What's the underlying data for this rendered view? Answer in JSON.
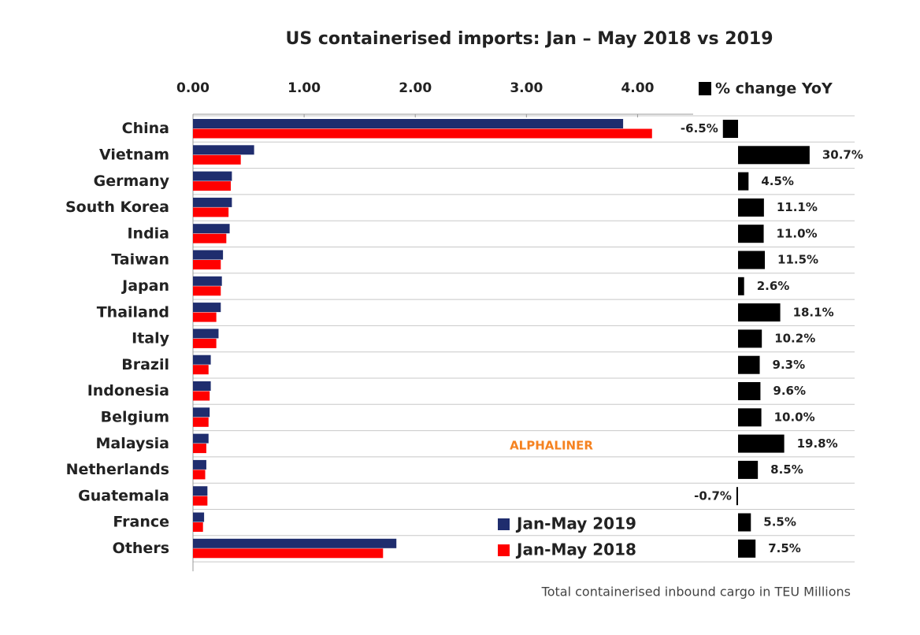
{
  "chart_data": {
    "type": "bar",
    "orientation": "horizontal",
    "title": "US containerised imports: Jan – May 2018 vs 2019",
    "footnote": "Total containerised inbound cargo in TEU Millions",
    "watermark": "ALPHALINER",
    "categories": [
      "China",
      "Vietnam",
      "Germany",
      "South Korea",
      "India",
      "Taiwan",
      "Japan",
      "Thailand",
      "Italy",
      "Brazil",
      "Indonesia",
      "Belgium",
      "Malaysia",
      "Netherlands",
      "Guatemala",
      "France",
      "Others"
    ],
    "series": [
      {
        "name": "Jan-May 2019",
        "color": "#1f2d6e",
        "values": [
          3.87,
          0.55,
          0.35,
          0.35,
          0.33,
          0.27,
          0.26,
          0.25,
          0.23,
          0.16,
          0.16,
          0.15,
          0.14,
          0.12,
          0.13,
          0.1,
          1.83
        ]
      },
      {
        "name": "Jan-May 2018",
        "color": "#ff0000",
        "values": [
          4.13,
          0.43,
          0.34,
          0.32,
          0.3,
          0.25,
          0.25,
          0.21,
          0.21,
          0.14,
          0.15,
          0.14,
          0.12,
          0.11,
          0.13,
          0.09,
          1.71
        ]
      },
      {
        "name": "% change YoY",
        "color": "#000000",
        "axis": "x2",
        "values": [
          -6.5,
          30.7,
          4.5,
          11.1,
          11.0,
          11.5,
          2.6,
          18.1,
          10.2,
          9.3,
          9.6,
          10.0,
          19.8,
          8.5,
          -0.7,
          5.5,
          7.5
        ],
        "value_labels": [
          "-6.5%",
          "30.7%",
          "4.5%",
          "11.1%",
          "11.0%",
          "11.5%",
          "2.6%",
          "18.1%",
          "10.2%",
          "9.3%",
          "9.6%",
          "10.0%",
          "19.8%",
          "8.5%",
          "-0.7%",
          "5.5%",
          "7.5%"
        ]
      }
    ],
    "xlim": [
      0,
      4.5
    ],
    "xticks": [
      {
        "value": 0,
        "label": "0.00"
      },
      {
        "value": 1,
        "label": "1.00"
      },
      {
        "value": 2,
        "label": "2.00"
      },
      {
        "value": 3,
        "label": "3.00"
      },
      {
        "value": 4,
        "label": "4.00"
      }
    ],
    "grid": true
  }
}
